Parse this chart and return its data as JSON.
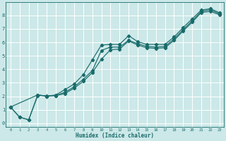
{
  "xlabel": "Humidex (Indice chaleur)",
  "ylabel": "",
  "xlim": [
    -0.5,
    23.5
  ],
  "ylim": [
    -0.3,
    9.0
  ],
  "xticks": [
    0,
    1,
    2,
    3,
    4,
    5,
    6,
    7,
    8,
    9,
    10,
    11,
    12,
    13,
    14,
    15,
    16,
    17,
    18,
    19,
    20,
    21,
    22,
    23
  ],
  "yticks": [
    0,
    1,
    2,
    3,
    4,
    5,
    6,
    7,
    8
  ],
  "bg_color": "#cce8e8",
  "line_color": "#1a6b6b",
  "grid_color": "#ffffff",
  "line1_x": [
    0,
    1,
    2,
    3,
    4,
    5,
    6,
    7,
    8,
    9,
    10,
    11,
    12,
    13,
    14,
    15,
    16,
    17,
    18,
    19,
    20,
    21,
    22,
    23
  ],
  "line1_y": [
    1.2,
    0.45,
    0.25,
    2.1,
    2.0,
    2.1,
    2.5,
    2.9,
    3.6,
    4.7,
    5.8,
    5.85,
    5.85,
    6.5,
    6.05,
    5.85,
    5.85,
    5.85,
    6.4,
    7.1,
    7.75,
    8.4,
    8.5,
    8.2
  ],
  "line2_x": [
    0,
    1,
    2,
    3,
    4,
    5,
    6,
    7,
    8,
    9,
    10,
    11,
    12,
    13,
    14,
    15,
    16,
    17,
    18,
    19,
    20,
    21,
    22,
    23
  ],
  "line2_y": [
    1.2,
    0.45,
    0.25,
    2.05,
    2.05,
    2.05,
    2.3,
    2.7,
    3.25,
    3.9,
    5.4,
    5.65,
    5.65,
    6.15,
    5.9,
    5.7,
    5.65,
    5.7,
    6.25,
    6.95,
    7.6,
    8.3,
    8.42,
    8.12
  ],
  "line3_x": [
    0,
    3,
    4,
    5,
    6,
    7,
    8,
    9,
    10,
    11,
    12,
    13,
    14,
    15,
    16,
    17,
    18,
    19,
    20,
    21,
    22,
    23
  ],
  "line3_y": [
    1.2,
    2.1,
    2.0,
    2.05,
    2.2,
    2.6,
    3.1,
    3.75,
    4.75,
    5.45,
    5.5,
    6.1,
    5.8,
    5.6,
    5.55,
    5.6,
    6.15,
    6.85,
    7.5,
    8.22,
    8.3,
    8.05
  ]
}
